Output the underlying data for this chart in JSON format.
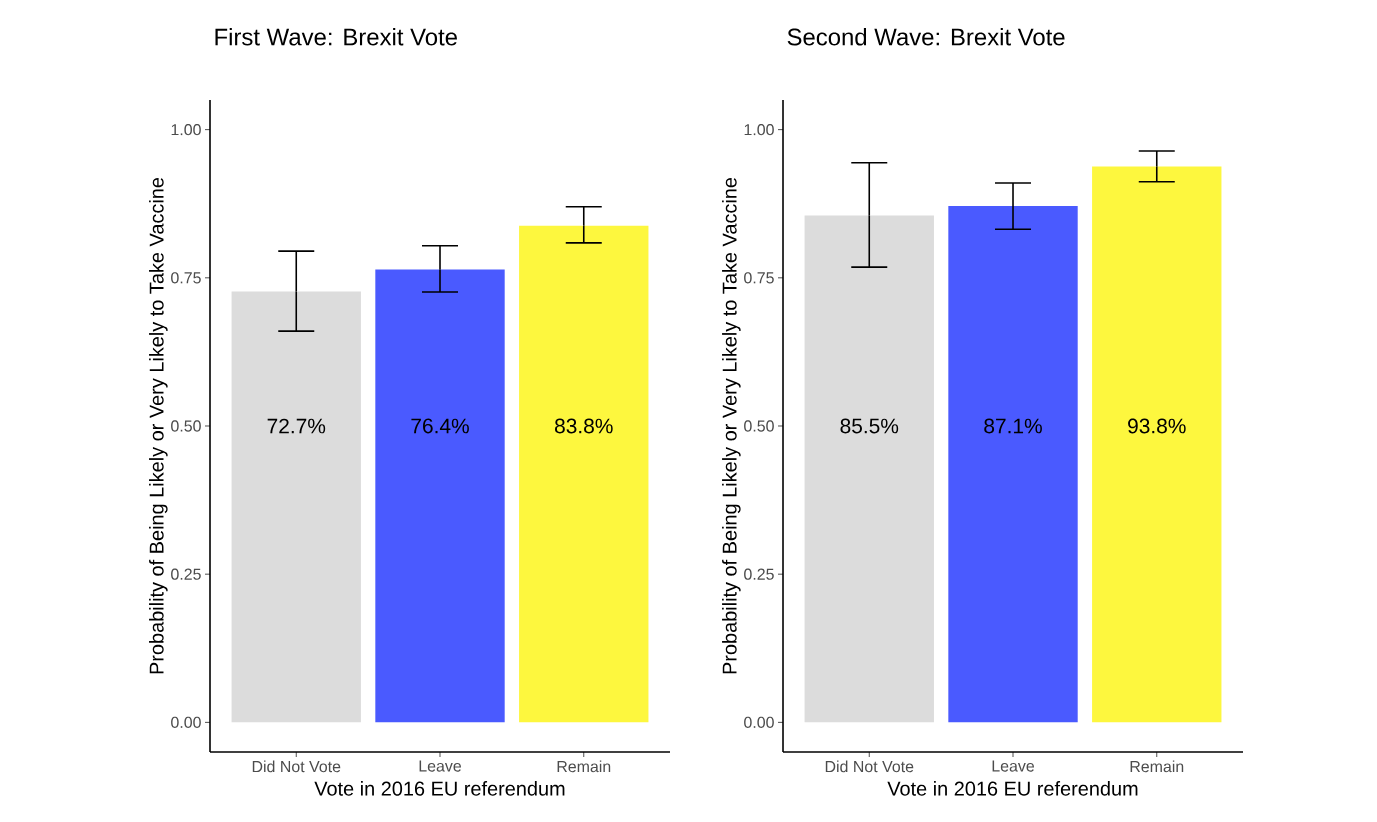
{
  "chart_data": [
    {
      "type": "bar",
      "title": "First Wave: Brexit Vote",
      "xlabel": "Vote in 2016 EU referendum",
      "ylabel": "Probability of Being Likely or Very Likely to Take Vaccine",
      "categories": [
        "Did Not Vote",
        "Leave",
        "Remain"
      ],
      "values": [
        0.727,
        0.764,
        0.838
      ],
      "colors": [
        "#dcdcdc",
        "#4a5aff",
        "#fdf73e"
      ],
      "value_labels": [
        "72.7%",
        "76.4%",
        "83.8%"
      ],
      "errors": [
        [
          0.66,
          0.795
        ],
        [
          0.726,
          0.804
        ],
        [
          0.809,
          0.87
        ]
      ],
      "ylim": [
        -0.05,
        1.05
      ],
      "yticks": [
        {
          "value": 0,
          "label": "0.00"
        },
        {
          "value": 0.25,
          "label": "0.25"
        },
        {
          "value": 0.5,
          "label": "0.50"
        },
        {
          "value": 0.75,
          "label": "0.75"
        },
        {
          "value": 1,
          "label": "1.00"
        }
      ]
    },
    {
      "type": "bar",
      "title": "Second Wave: Brexit Vote",
      "xlabel": "Vote in 2016 EU referendum",
      "ylabel": "Probability of Being Likely or Very Likely to Take Vaccine",
      "categories": [
        "Did Not Vote",
        "Leave",
        "Remain"
      ],
      "values": [
        0.855,
        0.871,
        0.938
      ],
      "colors": [
        "#dcdcdc",
        "#4a5aff",
        "#fdf73e"
      ],
      "value_labels": [
        "85.5%",
        "87.1%",
        "93.8%"
      ],
      "errors": [
        [
          0.768,
          0.944
        ],
        [
          0.832,
          0.91
        ],
        [
          0.912,
          0.964
        ]
      ],
      "ylim": [
        -0.05,
        1.05
      ],
      "yticks": [
        {
          "value": 0,
          "label": "0.00"
        },
        {
          "value": 0.25,
          "label": "0.25"
        },
        {
          "value": 0.5,
          "label": "0.50"
        },
        {
          "value": 0.75,
          "label": "0.75"
        },
        {
          "value": 1,
          "label": "1.00"
        }
      ]
    }
  ]
}
